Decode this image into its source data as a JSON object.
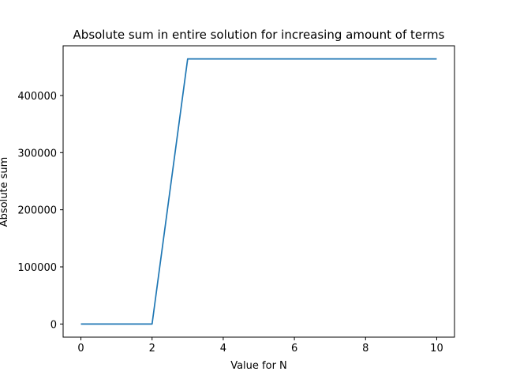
{
  "chart_data": {
    "type": "line",
    "title": "Absolute sum in entire solution for increasing amount of terms",
    "xlabel": "Value for N",
    "ylabel": "Absolute sum",
    "xlim": [
      -0.5,
      10.5
    ],
    "ylim": [
      -23000,
      487000
    ],
    "xticks": [
      0,
      2,
      4,
      6,
      8,
      10
    ],
    "xtick_labels": [
      "0",
      "2",
      "4",
      "6",
      "8",
      "10"
    ],
    "yticks": [
      0,
      100000,
      200000,
      300000,
      400000
    ],
    "ytick_labels": [
      "0",
      "100000",
      "200000",
      "300000",
      "400000"
    ],
    "grid": false,
    "series": [
      {
        "color": "#1f77b4",
        "x": [
          0,
          1,
          2,
          3,
          4,
          5,
          6,
          7,
          8,
          9,
          10
        ],
        "y": [
          0,
          0,
          0,
          464000,
          464000,
          464000,
          464000,
          464000,
          464000,
          464000,
          464000
        ]
      }
    ]
  }
}
